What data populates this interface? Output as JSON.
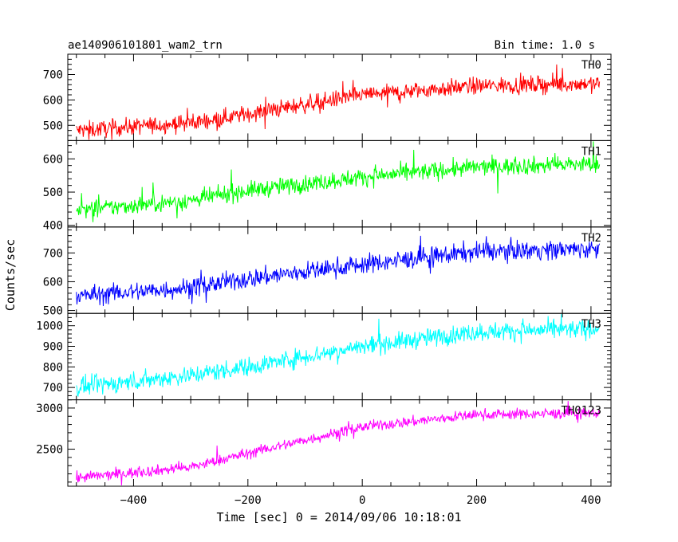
{
  "header": {
    "title": "ae140906101801_wam2_trn",
    "bin_time": "Bin time: 1.0 s"
  },
  "chart_data": {
    "type": "line",
    "xlabel": "Time [sec] 0 = 2014/09/06 10:18:01",
    "ylabel": "Counts/sec",
    "xlim": [
      -515,
      435
    ],
    "x_ticks": [
      -400,
      -200,
      0,
      200,
      400
    ],
    "x_tick_labels": [
      "−400",
      "−200",
      "0",
      "200",
      "400"
    ],
    "x_range": [
      -500,
      415
    ],
    "grid": false,
    "panels": [
      {
        "name": "TH0",
        "color": "#ff0000",
        "ylim": [
          440,
          780
        ],
        "y_ticks": [
          500,
          600,
          700
        ],
        "y_tick_labels": [
          "500",
          "600",
          "700"
        ],
        "trend": {
          "x": [
            -500,
            -300,
            -200,
            0,
            200,
            415
          ],
          "y": [
            480,
            510,
            545,
            620,
            655,
            665
          ]
        },
        "noise_amplitude": 28
      },
      {
        "name": "TH1",
        "color": "#00ff00",
        "ylim": [
          395,
          655
        ],
        "y_ticks": [
          400,
          500,
          600
        ],
        "y_tick_labels": [
          "400",
          "500",
          "600"
        ],
        "trend": {
          "x": [
            -500,
            -300,
            -200,
            0,
            200,
            415
          ],
          "y": [
            445,
            475,
            505,
            545,
            575,
            585
          ]
        },
        "noise_amplitude": 22
      },
      {
        "name": "TH2",
        "color": "#0000ff",
        "ylim": [
          490,
          790
        ],
        "y_ticks": [
          500,
          600,
          700
        ],
        "y_tick_labels": [
          "500",
          "600",
          "700"
        ],
        "trend": {
          "x": [
            -500,
            -300,
            -200,
            0,
            200,
            415
          ],
          "y": [
            550,
            580,
            610,
            660,
            705,
            715
          ]
        },
        "noise_amplitude": 28
      },
      {
        "name": "TH3",
        "color": "#00ffff",
        "ylim": [
          640,
          1060
        ],
        "y_ticks": [
          700,
          800,
          900,
          1000
        ],
        "y_tick_labels": [
          "700",
          "800",
          "900",
          "1000"
        ],
        "trend": {
          "x": [
            -500,
            -300,
            -200,
            0,
            200,
            415
          ],
          "y": [
            700,
            760,
            800,
            900,
            970,
            985
          ]
        },
        "noise_amplitude": 38
      },
      {
        "name": "TH0123",
        "color": "#ff00ff",
        "ylim": [
          2050,
          3100
        ],
        "y_ticks": [
          2500,
          3000
        ],
        "y_tick_labels": [
          "2500",
          "3000"
        ],
        "trend": {
          "x": [
            -500,
            -300,
            -200,
            0,
            200,
            415
          ],
          "y": [
            2150,
            2280,
            2450,
            2770,
            2920,
            2940
          ]
        },
        "noise_amplitude": 55
      }
    ]
  }
}
